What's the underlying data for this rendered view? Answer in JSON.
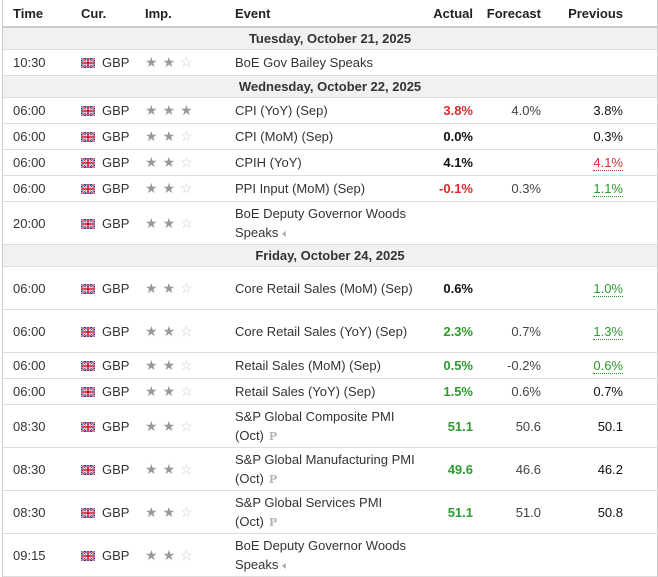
{
  "header": {
    "time": "Time",
    "currency": "Cur.",
    "importance": "Imp.",
    "event": "Event",
    "actual": "Actual",
    "forecast": "Forecast",
    "previous": "Previous"
  },
  "colors": {
    "negative": "#d32f2f",
    "positive": "#2e9b2e",
    "date_row_bg": "#f1f1f1"
  },
  "groups": [
    {
      "date": "Tuesday, October 21, 2025",
      "rows": [
        {
          "time": "10:30",
          "currency": "GBP",
          "importance": 2,
          "event": "BoE Gov Bailey Speaks",
          "icon": "",
          "actual": "",
          "actual_color": "",
          "forecast": "",
          "previous": "",
          "previous_color": ""
        }
      ]
    },
    {
      "date": "Wednesday, October 22, 2025",
      "rows": [
        {
          "time": "06:00",
          "currency": "GBP",
          "importance": 3,
          "event": "CPI (YoY) (Sep)",
          "icon": "",
          "actual": "3.8%",
          "actual_color": "red",
          "forecast": "4.0%",
          "previous": "3.8%",
          "previous_color": ""
        },
        {
          "time": "06:00",
          "currency": "GBP",
          "importance": 2,
          "event": "CPI (MoM) (Sep)",
          "icon": "",
          "actual": "0.0%",
          "actual_color": "black",
          "forecast": "",
          "previous": "0.3%",
          "previous_color": ""
        },
        {
          "time": "06:00",
          "currency": "GBP",
          "importance": 2,
          "event": "CPIH (YoY)",
          "icon": "",
          "actual": "4.1%",
          "actual_color": "black",
          "forecast": "",
          "previous": "4.1%",
          "previous_color": "red"
        },
        {
          "time": "06:00",
          "currency": "GBP",
          "importance": 2,
          "event": "PPI Input (MoM) (Sep)",
          "icon": "",
          "actual": "-0.1%",
          "actual_color": "red",
          "forecast": "0.3%",
          "previous": "1.1%",
          "previous_color": "green"
        },
        {
          "time": "20:00",
          "currency": "GBP",
          "importance": 2,
          "event": "BoE Deputy Governor Woods Speaks",
          "icon": "speaker",
          "actual": "",
          "actual_color": "",
          "forecast": "",
          "previous": "",
          "previous_color": ""
        }
      ]
    },
    {
      "date": "Friday, October 24, 2025",
      "rows": [
        {
          "time": "06:00",
          "currency": "GBP",
          "importance": 2,
          "event": "Core Retail Sales (MoM) (Sep)",
          "icon": "",
          "actual": "0.6%",
          "actual_color": "black",
          "forecast": "",
          "previous": "1.0%",
          "previous_color": "green"
        },
        {
          "time": "06:00",
          "currency": "GBP",
          "importance": 2,
          "event": "Core Retail Sales (YoY) (Sep)",
          "icon": "",
          "actual": "2.3%",
          "actual_color": "green",
          "forecast": "0.7%",
          "previous": "1.3%",
          "previous_color": "green"
        },
        {
          "time": "06:00",
          "currency": "GBP",
          "importance": 2,
          "event": "Retail Sales (MoM) (Sep)",
          "icon": "",
          "actual": "0.5%",
          "actual_color": "green",
          "forecast": "-0.2%",
          "previous": "0.6%",
          "previous_color": "green"
        },
        {
          "time": "06:00",
          "currency": "GBP",
          "importance": 2,
          "event": "Retail Sales (YoY) (Sep)",
          "icon": "",
          "actual": "1.5%",
          "actual_color": "green",
          "forecast": "0.6%",
          "previous": "0.7%",
          "previous_color": ""
        },
        {
          "time": "08:30",
          "currency": "GBP",
          "importance": 2,
          "event": "S&P Global Composite PMI (Oct)",
          "icon": "preliminary",
          "actual": "51.1",
          "actual_color": "green",
          "forecast": "50.6",
          "previous": "50.1",
          "previous_color": ""
        },
        {
          "time": "08:30",
          "currency": "GBP",
          "importance": 2,
          "event": "S&P Global Manufacturing PMI (Oct)",
          "icon": "preliminary",
          "actual": "49.6",
          "actual_color": "green",
          "forecast": "46.6",
          "previous": "46.2",
          "previous_color": ""
        },
        {
          "time": "08:30",
          "currency": "GBP",
          "importance": 2,
          "event": "S&P Global Services PMI (Oct)",
          "icon": "preliminary",
          "actual": "51.1",
          "actual_color": "green",
          "forecast": "51.0",
          "previous": "50.8",
          "previous_color": ""
        },
        {
          "time": "09:15",
          "currency": "GBP",
          "importance": 2,
          "event": "BoE Deputy Governor Woods Speaks",
          "icon": "speaker",
          "actual": "",
          "actual_color": "",
          "forecast": "",
          "previous": "",
          "previous_color": ""
        }
      ]
    }
  ]
}
